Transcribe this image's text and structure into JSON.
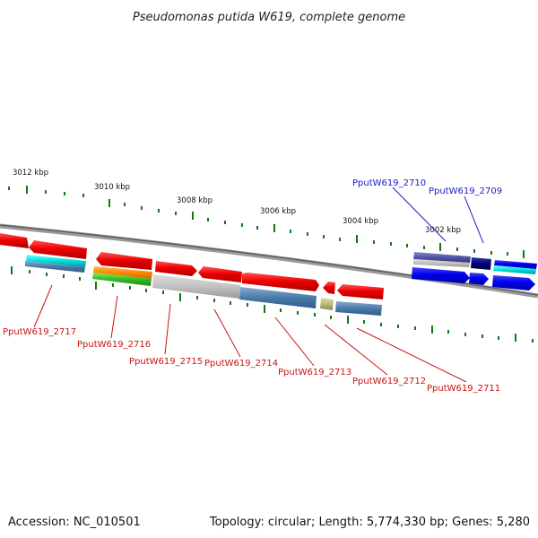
{
  "title": "Pseudomonas putida W619, complete genome",
  "footer": {
    "accession": "Accession: NC_010501",
    "topology": "Topology: circular; Length: 5,774,330 bp; Genes: 5,280"
  },
  "kbp_labels": [
    "3012 kbp",
    "3010 kbp",
    "3008 kbp",
    "3006 kbp",
    "3004 kbp",
    "3002 kbp"
  ],
  "gene_labels_top": [
    "PputW619_2710",
    "PputW619_2709"
  ],
  "gene_labels_bottom": [
    "PputW619_2717",
    "PputW619_2716",
    "PputW619_2715",
    "PputW619_2714",
    "PputW619_2713",
    "PputW619_2712",
    "PputW619_2711"
  ],
  "colors": {
    "forward_cds": "#ee1111",
    "reverse_cds": "#0000ee",
    "label_blue": "#1a1acc",
    "label_red": "#cc1111",
    "tick": "#117711",
    "backbone": "#888888"
  }
}
